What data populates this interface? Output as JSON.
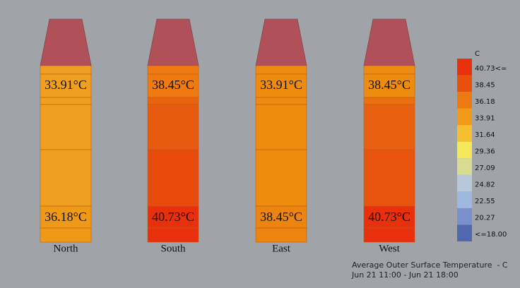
{
  "columns": [
    {
      "name": "North",
      "top_label": "33.91°C",
      "bottom_label": "36.18°C",
      "segment_colors": [
        "#f0a020",
        "#f0a020",
        "#f0a020",
        "#f0a020",
        "#f0a020",
        "#ee9a18",
        "#ee9a18"
      ]
    },
    {
      "name": "South",
      "top_label": "38.45°C",
      "bottom_label": "40.73°C",
      "segment_colors": [
        "#ee7a10",
        "#ee7a10",
        "#ea6410",
        "#e85a10",
        "#e84a0c",
        "#e8300c",
        "#e8300c"
      ]
    },
    {
      "name": "East",
      "top_label": "33.91°C",
      "bottom_label": "38.45°C",
      "segment_colors": [
        "#ee8c10",
        "#ee8c10",
        "#ee8c10",
        "#ee8c10",
        "#ee8c10",
        "#ee8410",
        "#ee8410"
      ]
    },
    {
      "name": "West",
      "top_label": "38.45°C",
      "bottom_label": "40.73°C",
      "segment_colors": [
        "#ee8c10",
        "#ee8c10",
        "#ea7010",
        "#e86010",
        "#e8540e",
        "#e8300c",
        "#e8300c"
      ]
    }
  ],
  "legend": {
    "unit": "C",
    "labels": [
      "40.73<=",
      "38.45",
      "36.18",
      "33.91",
      "31.64",
      "29.36",
      "27.09",
      "24.82",
      "22.55",
      "20.27",
      "<=18.00"
    ],
    "colors": [
      "#e8300c",
      "#e8500c",
      "#ec7a10",
      "#f09a18",
      "#f5c030",
      "#f5e858",
      "#d8dc90",
      "#b8c8d8",
      "#a0b8e0",
      "#7890cc",
      "#5068b0"
    ]
  },
  "caption": {
    "line1": "Average Outer Surface Temperature  - C",
    "line2": "Jun 21 11:00 - Jun 21 18:00"
  }
}
